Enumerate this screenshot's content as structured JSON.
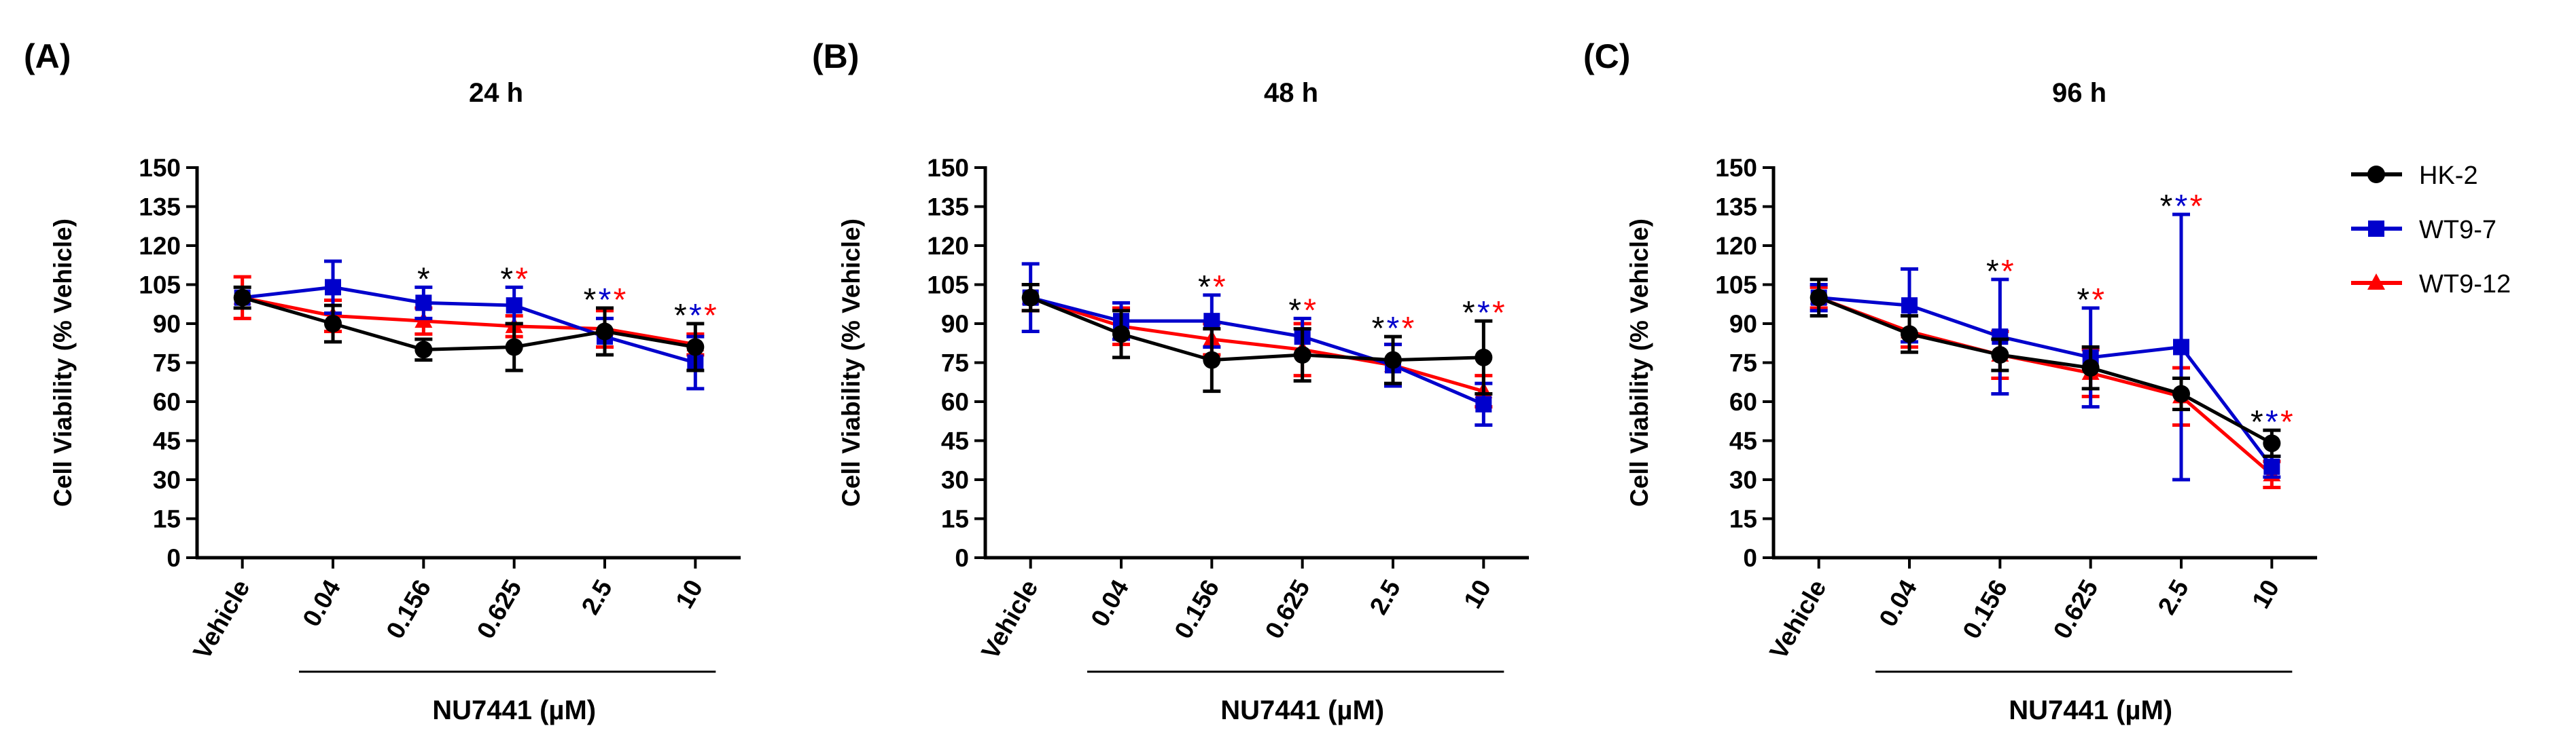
{
  "chart_data": [
    {
      "type": "line",
      "panel_label": "(A)",
      "title": "24 h",
      "xlabel": "NU7441 (µM)",
      "ylabel": "Cell Viability (% Vehicle)",
      "ylim": [
        0,
        150
      ],
      "yticks": [
        0,
        15,
        30,
        45,
        60,
        75,
        90,
        105,
        120,
        135,
        150
      ],
      "categories": [
        "Vehicle",
        "0.04",
        "0.156",
        "0.625",
        "2.5",
        "10"
      ],
      "series": [
        {
          "name": "HK-2",
          "values": [
            100,
            90,
            80,
            81,
            87,
            81
          ],
          "errors": [
            4,
            7,
            4,
            9,
            9,
            9
          ]
        },
        {
          "name": "WT9-7",
          "values": [
            100,
            104,
            98,
            97,
            85,
            75
          ],
          "errors": [
            0,
            10,
            6,
            7,
            7,
            10
          ]
        },
        {
          "name": "WT9-12",
          "values": [
            100,
            93,
            91,
            89,
            88,
            82
          ],
          "errors": [
            8,
            6,
            5,
            4,
            7,
            4
          ]
        }
      ],
      "significance": [
        {
          "category": "0.156",
          "marks": [
            "HK-2"
          ]
        },
        {
          "category": "0.625",
          "marks": [
            "HK-2",
            "WT9-12"
          ]
        },
        {
          "category": "2.5",
          "marks": [
            "HK-2",
            "WT9-7",
            "WT9-12"
          ]
        },
        {
          "category": "10",
          "marks": [
            "HK-2",
            "WT9-7",
            "WT9-12"
          ]
        }
      ]
    },
    {
      "type": "line",
      "panel_label": "(B)",
      "title": "48 h",
      "xlabel": "NU7441 (µM)",
      "ylabel": "Cell Viability (% Vehicle)",
      "ylim": [
        0,
        150
      ],
      "yticks": [
        0,
        15,
        30,
        45,
        60,
        75,
        90,
        105,
        120,
        135,
        150
      ],
      "categories": [
        "Vehicle",
        "0.04",
        "0.156",
        "0.625",
        "2.5",
        "10"
      ],
      "series": [
        {
          "name": "HK-2",
          "values": [
            100,
            86,
            76,
            78,
            76,
            77
          ],
          "errors": [
            5,
            9,
            12,
            10,
            9,
            14
          ]
        },
        {
          "name": "WT9-7",
          "values": [
            100,
            91,
            91,
            85,
            74,
            59
          ],
          "errors": [
            13,
            7,
            10,
            7,
            8,
            8
          ]
        },
        {
          "name": "WT9-12",
          "values": [
            100,
            89,
            84,
            80,
            74,
            64
          ],
          "errors": [
            5,
            7,
            6,
            10,
            8,
            6
          ]
        }
      ],
      "significance": [
        {
          "category": "0.156",
          "marks": [
            "HK-2",
            "WT9-12"
          ]
        },
        {
          "category": "0.625",
          "marks": [
            "HK-2",
            "WT9-12"
          ]
        },
        {
          "category": "2.5",
          "marks": [
            "HK-2",
            "WT9-7",
            "WT9-12"
          ]
        },
        {
          "category": "10",
          "marks": [
            "HK-2",
            "WT9-7",
            "WT9-12"
          ]
        }
      ]
    },
    {
      "type": "line",
      "panel_label": "(C)",
      "title": "96 h",
      "xlabel": "NU7441 (µM)",
      "ylabel": "Cell Viability (% Vehicle)",
      "ylim": [
        0,
        150
      ],
      "yticks": [
        0,
        15,
        30,
        45,
        60,
        75,
        90,
        105,
        120,
        135,
        150
      ],
      "categories": [
        "Vehicle",
        "0.04",
        "0.156",
        "0.625",
        "2.5",
        "10"
      ],
      "series": [
        {
          "name": "HK-2",
          "values": [
            100,
            86,
            78,
            73,
            63,
            44
          ],
          "errors": [
            7,
            7,
            6,
            8,
            6,
            5
          ]
        },
        {
          "name": "WT9-7",
          "values": [
            100,
            97,
            85,
            77,
            81,
            35
          ],
          "errors": [
            5,
            14,
            22,
            19,
            51,
            4
          ]
        },
        {
          "name": "WT9-12",
          "values": [
            100,
            87,
            78,
            71,
            62,
            32
          ],
          "errors": [
            4,
            6,
            9,
            9,
            11,
            5
          ]
        }
      ],
      "significance": [
        {
          "category": "0.156",
          "marks": [
            "HK-2",
            "WT9-12"
          ]
        },
        {
          "category": "0.625",
          "marks": [
            "HK-2",
            "WT9-12"
          ]
        },
        {
          "category": "2.5",
          "marks": [
            "HK-2",
            "WT9-7",
            "WT9-12"
          ]
        },
        {
          "category": "10",
          "marks": [
            "HK-2",
            "WT9-7",
            "WT9-12"
          ]
        }
      ]
    }
  ],
  "legend": {
    "placement": "right",
    "entries": [
      {
        "name": "HK-2",
        "color": "#000000",
        "marker": "circle"
      },
      {
        "name": "WT9-7",
        "color": "#0000cc",
        "marker": "square"
      },
      {
        "name": "WT9-12",
        "color": "#ff0000",
        "marker": "triangle"
      }
    ]
  },
  "significance_symbol": "*"
}
